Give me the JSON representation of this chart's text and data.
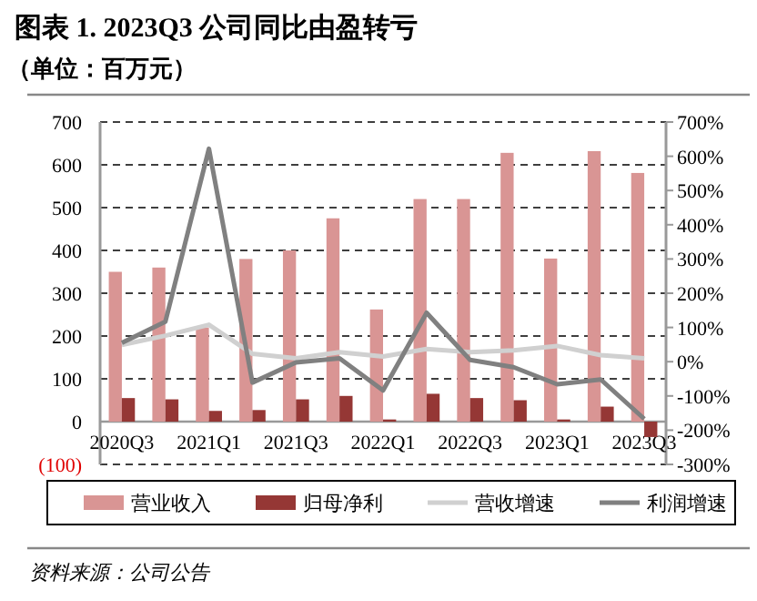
{
  "chart_data": {
    "type": "bar",
    "title": "图表 1. 2023Q3 公司同比由盈转亏",
    "subtitle": "（单位：百万元）",
    "categories": [
      "2020Q3",
      null,
      "2021Q1",
      null,
      "2021Q3",
      null,
      "2022Q1",
      null,
      "2022Q3",
      null,
      "2023Q1",
      null,
      "2023Q3"
    ],
    "series": [
      {
        "name": "营业收入",
        "axis": "y",
        "color": "#d99594",
        "values": [
          350,
          360,
          220,
          380,
          400,
          475,
          262,
          520,
          520,
          628,
          381,
          632,
          581
        ]
      },
      {
        "name": "归母净利",
        "axis": "y",
        "color": "#953735",
        "values": [
          55,
          52,
          25,
          27,
          52,
          60,
          5,
          65,
          55,
          50,
          5,
          35,
          -36
        ]
      },
      {
        "name": "营收增速",
        "type": "line",
        "axis": "y2",
        "color": "#d0d0d0",
        "values": [
          49,
          76,
          108,
          23,
          10,
          28,
          15,
          37,
          28,
          33,
          46,
          19,
          10
        ]
      },
      {
        "name": "利润增速",
        "type": "line",
        "axis": "y2",
        "color": "#808080",
        "values": [
          55,
          117,
          622,
          -61,
          -2,
          10,
          -84,
          143,
          5,
          -16,
          -66,
          -52,
          -167
        ]
      }
    ],
    "ylim": [
      -100,
      700
    ],
    "yticks": [
      {
        "value": -100,
        "label": "(100)"
      },
      0,
      100,
      200,
      300,
      400,
      500,
      600,
      700
    ],
    "y2lim": [
      -300,
      700
    ],
    "y2ticks": [
      {
        "value": -300,
        "label": "-300%"
      },
      {
        "value": -200,
        "label": "-200%"
      },
      {
        "value": -100,
        "label": "-100%"
      },
      {
        "value": 0,
        "label": "0%"
      },
      {
        "value": 100,
        "label": "100%"
      },
      {
        "value": 200,
        "label": "200%"
      },
      {
        "value": 300,
        "label": "300%"
      },
      {
        "value": 400,
        "label": "400%"
      },
      {
        "value": 500,
        "label": "500%"
      },
      {
        "value": 600,
        "label": "600%"
      },
      {
        "value": 700,
        "label": "700%"
      }
    ],
    "grid": "y",
    "legend": "bottom",
    "marker": "none",
    "line_style": "solid",
    "annotations": [
      "资料来源：公司公告"
    ]
  }
}
